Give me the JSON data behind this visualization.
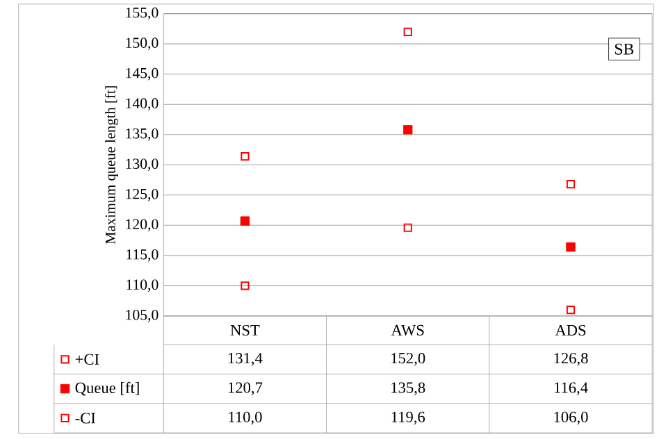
{
  "chart_data": {
    "type": "scatter",
    "ylabel": "Maximum queue length [ft]",
    "categories": [
      "NST",
      "AWS",
      "ADS"
    ],
    "series": [
      {
        "name": "+CI",
        "color": "#ff0000",
        "values": [
          131.4,
          152.0,
          126.8
        ],
        "value_labels": [
          "131,4",
          "152,0",
          "126,8"
        ]
      },
      {
        "name": "Queue [ft]",
        "color": "#ff0000",
        "marker": "square",
        "values": [
          120.7,
          135.8,
          116.4
        ],
        "value_labels": [
          "120,7",
          "135,8",
          "116,4"
        ]
      },
      {
        "name": "-CI",
        "color": "#ff0000",
        "values": [
          110.0,
          119.6,
          106.0
        ],
        "value_labels": [
          "110,0",
          "119,6",
          "106,0"
        ]
      }
    ],
    "ylim": [
      105,
      155
    ],
    "yticks": [
      {
        "value": 105,
        "label": "105,0"
      },
      {
        "value": 110,
        "label": "110,0"
      },
      {
        "value": 115,
        "label": "115,0"
      },
      {
        "value": 120,
        "label": "120,0"
      },
      {
        "value": 125,
        "label": "125,0"
      },
      {
        "value": 130,
        "label": "130,0"
      },
      {
        "value": 135,
        "label": "135,0"
      },
      {
        "value": 140,
        "label": "140,0"
      },
      {
        "value": 145,
        "label": "145,0"
      },
      {
        "value": 150,
        "label": "150,0"
      },
      {
        "value": 155,
        "label": "155,0"
      }
    ],
    "grid": "y",
    "legend": "bottom left",
    "annotations": [
      "SB"
    ]
  }
}
